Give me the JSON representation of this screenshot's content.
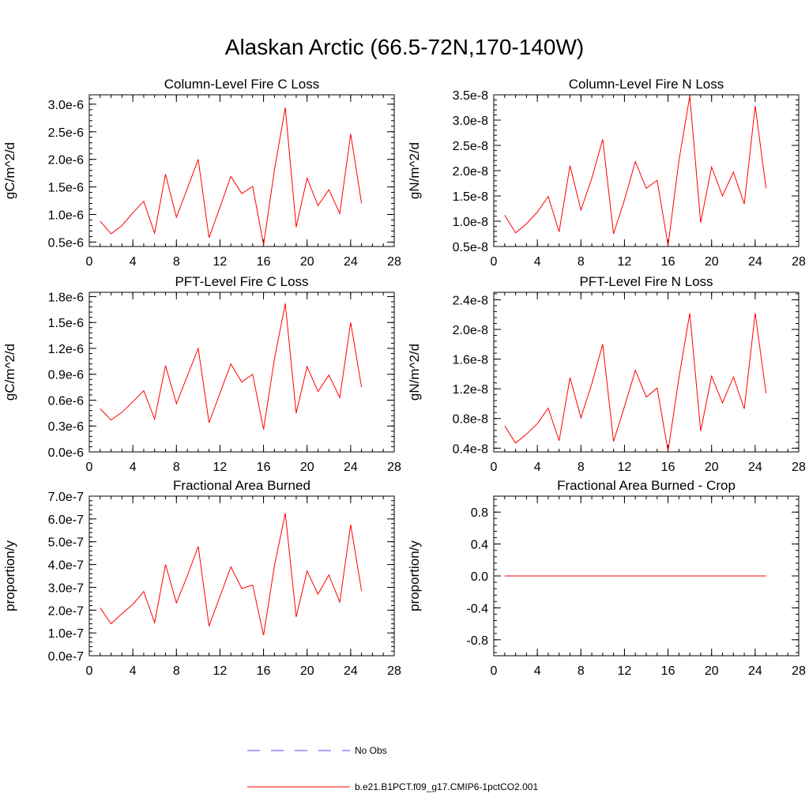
{
  "title": "Alaskan Arctic (66.5-72N,170-140W)",
  "colors": {
    "model_line": "#ff0000",
    "obs_line": "#4a4aff",
    "axis": "#000000"
  },
  "chart_data": [
    {
      "type": "line",
      "title": "Column-Level Fire C Loss",
      "ylabel": "gC/m^2/d",
      "xlim": [
        0,
        28
      ],
      "ylim": [
        0.42,
        3.17
      ],
      "xticks": [
        0,
        4,
        8,
        12,
        16,
        20,
        24,
        28
      ],
      "yticks": [
        0.5,
        1.0,
        1.5,
        2.0,
        2.5,
        3.0
      ],
      "ytick_labels": [
        "0.5e-6",
        "1.0e-6",
        "1.5e-6",
        "2.0e-6",
        "2.5e-6",
        "3.0e-6"
      ],
      "value_scale": "e-6",
      "series": [
        {
          "name": "b.e21.B1PCT.f09_g17.CMIP6-1pctCO2.001",
          "x": [
            1,
            2,
            3,
            4,
            5,
            6,
            7,
            8,
            9,
            10,
            11,
            12,
            13,
            14,
            15,
            16,
            17,
            18,
            19,
            20,
            21,
            22,
            23,
            24,
            25
          ],
          "y": [
            0.88,
            0.65,
            0.8,
            1.03,
            1.24,
            0.66,
            1.73,
            0.95,
            1.47,
            2.0,
            0.58,
            1.13,
            1.69,
            1.38,
            1.51,
            0.45,
            1.81,
            2.94,
            0.77,
            1.66,
            1.16,
            1.45,
            1.02,
            2.46,
            1.2
          ]
        }
      ]
    },
    {
      "type": "line",
      "title": "Column-Level Fire N Loss",
      "ylabel": "gN/m^2/d",
      "xlim": [
        0,
        28
      ],
      "ylim": [
        0.5,
        3.5
      ],
      "xticks": [
        0,
        4,
        8,
        12,
        16,
        20,
        24,
        28
      ],
      "yticks": [
        0.5,
        1.0,
        1.5,
        2.0,
        2.5,
        3.0,
        3.5
      ],
      "ytick_labels": [
        "0.5e-8",
        "1.0e-8",
        "1.5e-8",
        "2.0e-8",
        "2.5e-8",
        "3.0e-8",
        "3.5e-8"
      ],
      "value_scale": "e-8",
      "series": [
        {
          "name": "b.e21.B1PCT.f09_g17.CMIP6-1pctCO2.001",
          "x": [
            1,
            2,
            3,
            4,
            5,
            6,
            7,
            8,
            9,
            10,
            11,
            12,
            13,
            14,
            15,
            16,
            17,
            18,
            19,
            20,
            21,
            22,
            23,
            24,
            25
          ],
          "y": [
            1.12,
            0.77,
            0.95,
            1.18,
            1.49,
            0.79,
            2.1,
            1.22,
            1.85,
            2.62,
            0.75,
            1.42,
            2.18,
            1.65,
            1.81,
            0.52,
            2.2,
            3.48,
            0.97,
            2.07,
            1.5,
            1.97,
            1.34,
            3.28,
            1.65
          ]
        }
      ]
    },
    {
      "type": "line",
      "title": "PFT-Level Fire C Loss",
      "ylabel": "gC/m^2/d",
      "xlim": [
        0,
        28
      ],
      "ylim": [
        0.0,
        1.85
      ],
      "xticks": [
        0,
        4,
        8,
        12,
        16,
        20,
        24,
        28
      ],
      "yticks": [
        0.0,
        0.3,
        0.6,
        0.9,
        1.2,
        1.5,
        1.8
      ],
      "ytick_labels": [
        "0.0e-6",
        "0.3e-6",
        "0.6e-6",
        "0.9e-6",
        "1.2e-6",
        "1.5e-6",
        "1.8e-6"
      ],
      "value_scale": "e-6",
      "series": [
        {
          "name": "b.e21.B1PCT.f09_g17.CMIP6-1pctCO2.001",
          "x": [
            1,
            2,
            3,
            4,
            5,
            6,
            7,
            8,
            9,
            10,
            11,
            12,
            13,
            14,
            15,
            16,
            17,
            18,
            19,
            20,
            21,
            22,
            23,
            24,
            25
          ],
          "y": [
            0.5,
            0.37,
            0.46,
            0.58,
            0.71,
            0.38,
            1.0,
            0.56,
            0.88,
            1.2,
            0.34,
            0.68,
            1.02,
            0.81,
            0.9,
            0.26,
            1.08,
            1.72,
            0.45,
            0.99,
            0.7,
            0.89,
            0.63,
            1.5,
            0.75
          ]
        }
      ]
    },
    {
      "type": "line",
      "title": "PFT-Level Fire N Loss",
      "ylabel": "gN/m^2/d",
      "xlim": [
        0,
        28
      ],
      "ylim": [
        0.35,
        2.5
      ],
      "xticks": [
        0,
        4,
        8,
        12,
        16,
        20,
        24,
        28
      ],
      "yticks": [
        0.4,
        0.8,
        1.2,
        1.6,
        2.0,
        2.4
      ],
      "ytick_labels": [
        "0.4e-8",
        "0.8e-8",
        "1.2e-8",
        "1.6e-8",
        "2.0e-8",
        "2.4e-8"
      ],
      "value_scale": "e-8",
      "series": [
        {
          "name": "b.e21.B1PCT.f09_g17.CMIP6-1pctCO2.001",
          "x": [
            1,
            2,
            3,
            4,
            5,
            6,
            7,
            8,
            9,
            10,
            11,
            12,
            13,
            14,
            15,
            16,
            17,
            18,
            19,
            20,
            21,
            22,
            23,
            24,
            25
          ],
          "y": [
            0.7,
            0.47,
            0.59,
            0.73,
            0.94,
            0.5,
            1.35,
            0.81,
            1.27,
            1.8,
            0.49,
            0.96,
            1.45,
            1.09,
            1.21,
            0.36,
            1.35,
            2.22,
            0.63,
            1.37,
            1.01,
            1.36,
            0.93,
            2.22,
            1.14
          ]
        }
      ]
    },
    {
      "type": "line",
      "title": "Fractional Area Burned",
      "ylabel": "proportion/y",
      "xlim": [
        0,
        28
      ],
      "ylim": [
        0.0,
        7.0
      ],
      "xticks": [
        0,
        4,
        8,
        12,
        16,
        20,
        24,
        28
      ],
      "yticks": [
        0.0,
        1.0,
        2.0,
        3.0,
        4.0,
        5.0,
        6.0,
        7.0
      ],
      "ytick_labels": [
        "0.0e-7",
        "1.0e-7",
        "2.0e-7",
        "3.0e-7",
        "4.0e-7",
        "5.0e-7",
        "6.0e-7",
        "7.0e-7"
      ],
      "value_scale": "e-7",
      "series": [
        {
          "name": "b.e21.B1PCT.f09_g17.CMIP6-1pctCO2.001",
          "x": [
            1,
            2,
            3,
            4,
            5,
            6,
            7,
            8,
            9,
            10,
            11,
            12,
            13,
            14,
            15,
            16,
            17,
            18,
            19,
            20,
            21,
            22,
            23,
            24,
            25
          ],
          "y": [
            2.1,
            1.4,
            1.85,
            2.25,
            2.82,
            1.45,
            4.0,
            2.32,
            3.5,
            4.8,
            1.3,
            2.6,
            3.9,
            2.95,
            3.1,
            0.9,
            3.95,
            6.25,
            1.7,
            3.72,
            2.7,
            3.55,
            2.35,
            5.75,
            2.85
          ]
        }
      ]
    },
    {
      "type": "line",
      "title": "Fractional Area Burned - Crop",
      "ylabel": "proportion/y",
      "xlim": [
        0,
        28
      ],
      "ylim": [
        -1.0,
        1.0
      ],
      "xticks": [
        0,
        4,
        8,
        12,
        16,
        20,
        24,
        28
      ],
      "yticks": [
        -0.8,
        -0.4,
        0.0,
        0.4,
        0.8
      ],
      "ytick_labels": [
        "-0.8",
        "-0.4",
        "0.0",
        "0.4",
        "0.8"
      ],
      "value_scale": "",
      "series": [
        {
          "name": "b.e21.B1PCT.f09_g17.CMIP6-1pctCO2.001",
          "x": [
            1,
            2,
            3,
            4,
            5,
            6,
            7,
            8,
            9,
            10,
            11,
            12,
            13,
            14,
            15,
            16,
            17,
            18,
            19,
            20,
            21,
            22,
            23,
            24,
            25
          ],
          "y": [
            0,
            0,
            0,
            0,
            0,
            0,
            0,
            0,
            0,
            0,
            0,
            0,
            0,
            0,
            0,
            0,
            0,
            0,
            0,
            0,
            0,
            0,
            0,
            0,
            0
          ]
        }
      ]
    }
  ],
  "legend": {
    "items": [
      {
        "label": "No Obs",
        "style": "dashed"
      },
      {
        "label": "b.e21.B1PCT.f09_g17.CMIP6-1pctCO2.001",
        "style": "solid"
      }
    ]
  }
}
